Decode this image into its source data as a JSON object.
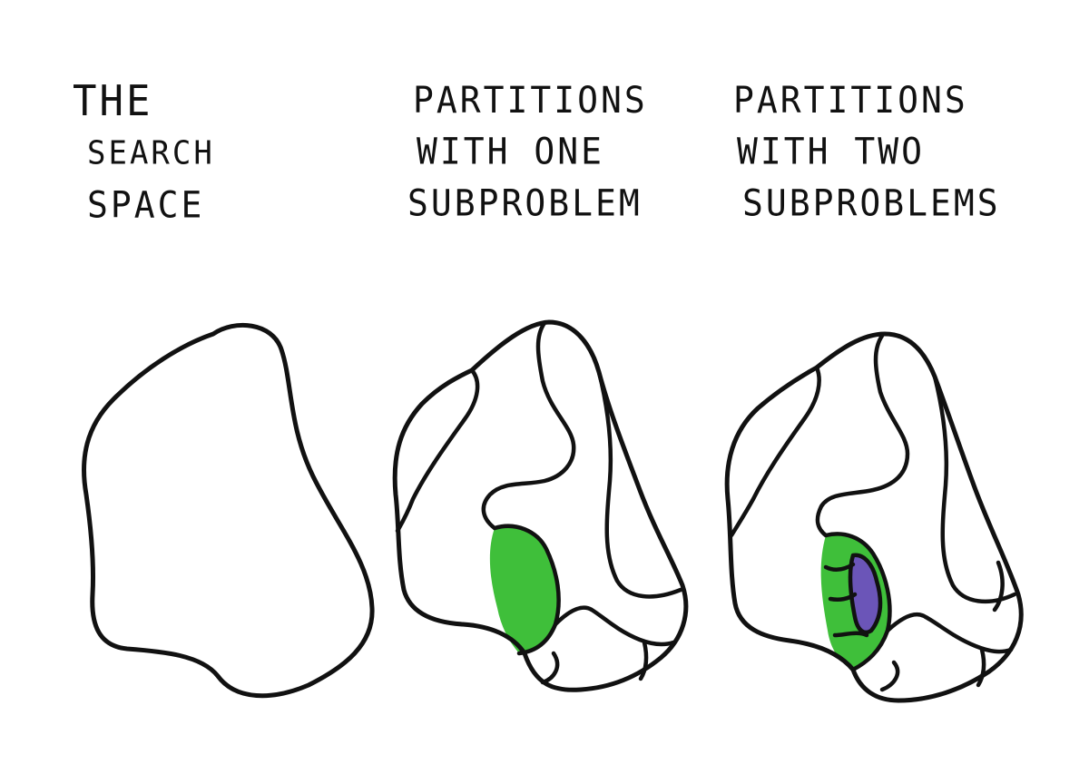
{
  "columns": [
    {
      "lines": [
        "THE",
        "SEARCH",
        "SPACE"
      ]
    },
    {
      "lines": [
        "PARTITIONS",
        "WITH ONE",
        "SUBPROBLEM"
      ]
    },
    {
      "lines": [
        "PARTITIONS",
        "WITH TWO",
        "SUBPROBLEMS"
      ]
    }
  ],
  "colors": {
    "ink": "#111111",
    "subproblem_green": "#3fbf3a",
    "subproblem_purple": "#6b55b8",
    "background": "#ffffff"
  }
}
